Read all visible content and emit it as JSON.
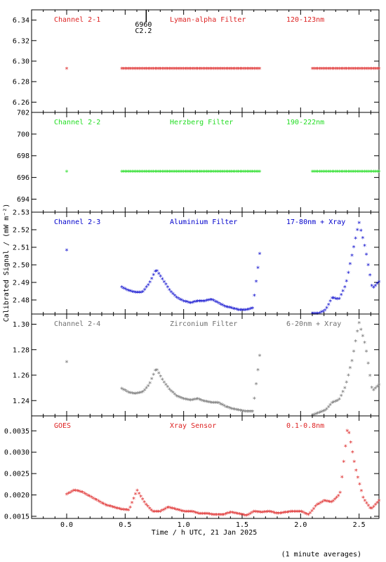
{
  "figure": {
    "xlabel": "Time / h UTC, 21 Jan 2025",
    "ylabel": "Calibrated Signal / (mW m⁻²)",
    "footnote": "(1 minute averages)",
    "marker": {
      "label_top": "6960",
      "label_bottom": "C2.2",
      "x": 0.68
    }
  },
  "chart_data": [
    {
      "type": "scatter",
      "channel": "Channel 2-1",
      "filter": "Lyman-alpha Filter",
      "band": "120-123nm",
      "color": "#dd2222",
      "xlim": [
        -0.3,
        2.67
      ],
      "ylim": [
        6.25,
        6.35
      ],
      "yticks": [
        6.26,
        6.28,
        6.3,
        6.32,
        6.34
      ],
      "segments": [
        {
          "x0": 0.0,
          "x1": 0.0,
          "values": [
            6.292
          ]
        },
        {
          "x0": 0.47,
          "x1": 1.65,
          "values": [
            6.292,
            6.292,
            6.292,
            6.292,
            6.292,
            6.292,
            6.292,
            6.292,
            6.292,
            6.292,
            6.292,
            6.292,
            6.292,
            6.292,
            6.292,
            6.292,
            6.292,
            6.292,
            6.292,
            6.292,
            6.292
          ]
        },
        {
          "x0": 2.1,
          "x1": 2.67,
          "values": [
            6.292,
            6.292,
            6.292,
            6.292,
            6.292,
            6.292,
            6.292,
            6.292,
            6.292,
            6.292,
            6.292
          ]
        }
      ]
    },
    {
      "type": "scatter",
      "channel": "Channel 2-2",
      "filter": "Herzberg Filter",
      "band": "190-222nm",
      "color": "#22dd22",
      "xlim": [
        -0.3,
        2.67
      ],
      "ylim": [
        692.8,
        702.0
      ],
      "yticks": [
        694,
        696,
        698,
        700,
        702
      ],
      "segments": [
        {
          "x0": 0.0,
          "x1": 0.0,
          "values": [
            696.5
          ]
        },
        {
          "x0": 0.47,
          "x1": 1.65,
          "values": [
            696.5,
            696.5,
            696.5,
            696.5,
            696.5,
            696.5,
            696.5,
            696.5,
            696.5,
            696.5,
            696.5,
            696.5,
            696.5,
            696.5,
            696.5,
            696.5,
            696.5,
            696.5,
            696.5,
            696.5,
            696.5
          ]
        },
        {
          "x0": 2.1,
          "x1": 2.67,
          "values": [
            696.5,
            696.5,
            696.5,
            696.5,
            696.5,
            696.5,
            696.5,
            696.5,
            696.5,
            696.5,
            696.5
          ]
        }
      ]
    },
    {
      "type": "scatter",
      "channel": "Channel 2-3",
      "filter": "Aluminium Filter",
      "band": "17-80nm + Xray",
      "color": "#0000cc",
      "xlim": [
        -0.3,
        2.67
      ],
      "ylim": [
        2.472,
        2.53
      ],
      "yticks": [
        2.48,
        2.49,
        2.5,
        2.51,
        2.52,
        2.53
      ],
      "segments": [
        {
          "x0": 0.0,
          "x1": 0.0,
          "values": [
            2.508
          ]
        },
        {
          "x0": 0.47,
          "x1": 1.65,
          "values": [
            2.487,
            2.485,
            2.484,
            2.484,
            2.489,
            2.497,
            2.491,
            2.485,
            2.481,
            2.479,
            2.478,
            2.479,
            2.479,
            2.48,
            2.478,
            2.476,
            2.475,
            2.474,
            2.474,
            2.475,
            2.506
          ]
        },
        {
          "x0": 2.1,
          "x1": 2.67,
          "values": [
            2.472,
            2.472,
            2.474,
            2.481,
            2.48,
            2.488,
            2.506,
            2.524,
            2.508,
            2.486,
            2.49
          ]
        }
      ]
    },
    {
      "type": "scatter",
      "channel": "Channel 2-4",
      "filter": "Zirconium Filter",
      "band": "6-20nm + Xray",
      "color": "#707070",
      "xlim": [
        -0.3,
        2.67
      ],
      "ylim": [
        1.228,
        1.308
      ],
      "yticks": [
        1.24,
        1.26,
        1.28,
        1.3
      ],
      "segments": [
        {
          "x0": 0.0,
          "x1": 0.0,
          "values": [
            1.27
          ]
        },
        {
          "x0": 0.47,
          "x1": 1.65,
          "values": [
            1.249,
            1.246,
            1.245,
            1.246,
            1.252,
            1.265,
            1.255,
            1.248,
            1.243,
            1.241,
            1.24,
            1.241,
            1.239,
            1.238,
            1.238,
            1.235,
            1.233,
            1.232,
            1.231,
            1.231,
            1.275
          ]
        },
        {
          "x0": 2.1,
          "x1": 2.67,
          "values": [
            1.228,
            1.23,
            1.232,
            1.238,
            1.24,
            1.251,
            1.272,
            1.301,
            1.282,
            1.247,
            1.252
          ]
        }
      ]
    },
    {
      "type": "scatter",
      "channel": "GOES",
      "filter": "Xray Sensor",
      "band": "0.1-0.8nm",
      "color": "#dd2222",
      "xlim": [
        -0.3,
        2.67
      ],
      "ylim": [
        0.00145,
        0.00385
      ],
      "yticks": [
        0.0015,
        0.002,
        0.0025,
        0.003,
        0.0035
      ],
      "segments": [
        {
          "x0": 0.0,
          "x1": 2.67,
          "values": [
            0.002,
            0.0021,
            0.00205,
            0.00195,
            0.00185,
            0.00175,
            0.0017,
            0.00165,
            0.00163,
            0.0021,
            0.0018,
            0.0016,
            0.0016,
            0.0017,
            0.00165,
            0.0016,
            0.0016,
            0.00155,
            0.00155,
            0.00152,
            0.00152,
            0.00158,
            0.00155,
            0.0015,
            0.0016,
            0.00158,
            0.0016,
            0.00155,
            0.00158,
            0.0016,
            0.0016,
            0.00152,
            0.00175,
            0.00185,
            0.00182,
            0.002,
            0.0036,
            0.0026,
            0.0019,
            0.00165,
            0.00185
          ]
        }
      ]
    }
  ]
}
